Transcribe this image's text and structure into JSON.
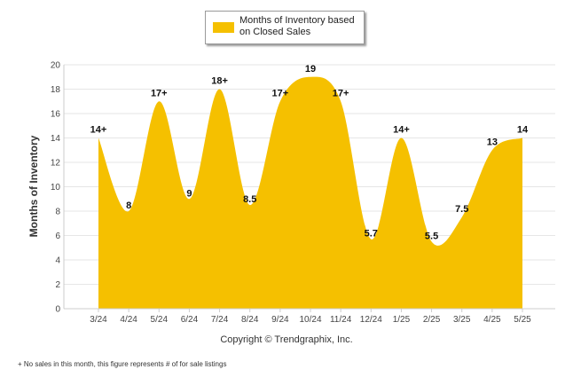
{
  "chart_data": {
    "type": "area",
    "categories": [
      "3/24",
      "4/24",
      "5/24",
      "6/24",
      "7/24",
      "8/24",
      "9/24",
      "10/24",
      "11/24",
      "12/24",
      "1/25",
      "2/25",
      "3/25",
      "4/25",
      "5/25"
    ],
    "series": [
      {
        "name": "Months of Inventory based on Closed Sales",
        "values": [
          14,
          8,
          17,
          9,
          18,
          8.5,
          17,
          19,
          17,
          5.7,
          14,
          5.5,
          7.5,
          13,
          14
        ],
        "labels": [
          "14+",
          "8",
          "17+",
          "9",
          "18+",
          "8.5",
          "17+",
          "19",
          "17+",
          "5.7",
          "14+",
          "5.5",
          "7.5",
          "13",
          "14"
        ],
        "color": "#f5c000"
      }
    ],
    "ylabel": "Months of Inventory",
    "ylim": [
      0,
      20
    ],
    "yticks": [
      0,
      2,
      4,
      6,
      8,
      10,
      12,
      14,
      16,
      18,
      20
    ],
    "grid": true,
    "legend_position": "top"
  },
  "legend": {
    "label": "Months of Inventory based on Closed Sales",
    "color": "#f5c000"
  },
  "copyright": "Copyright © Trendgraphix, Inc.",
  "footnote": "+ No sales in this month, this figure represents # of for sale listings"
}
